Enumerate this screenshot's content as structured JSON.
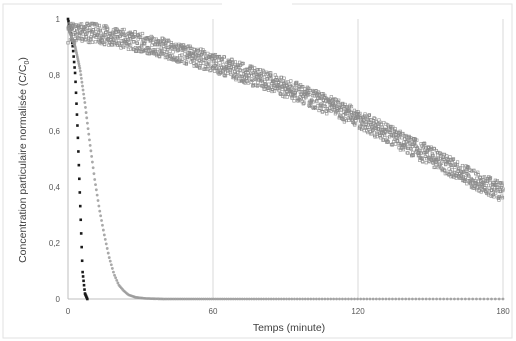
{
  "chart_data": {
    "type": "scatter",
    "title": "",
    "xlabel": "Temps (minute)",
    "ylabel": "Concentration particulaire normalisée (C/C",
    "ylabel_sub": "0",
    "ylabel_close": ")",
    "xlim": [
      0,
      180
    ],
    "ylim": [
      0,
      1
    ],
    "x_ticks": [
      0,
      60,
      120,
      180
    ],
    "x_tick_labels": [
      "0",
      "60",
      "120",
      "180"
    ],
    "y_ticks": [
      0,
      0.2,
      0.4,
      0.6,
      0.8,
      1
    ],
    "y_tick_labels": [
      "0",
      "0,2",
      "0,4",
      "0,6",
      "0,8",
      "1"
    ],
    "grid": "vertical",
    "legend": "none",
    "series": [
      {
        "marker": "square-black",
        "color": "#1a1a1a",
        "x": [
          0,
          1,
          2,
          3,
          4,
          5,
          6,
          7,
          8
        ],
        "y": [
          1.0,
          0.96,
          0.9,
          0.8,
          0.6,
          0.35,
          0.1,
          0.02,
          0.0
        ]
      },
      {
        "marker": "circle-gray",
        "color": "#9a9a9a",
        "x": [
          0,
          3,
          5,
          7,
          9,
          11,
          13,
          15,
          17,
          19,
          21,
          23,
          25,
          28,
          32,
          40,
          60,
          100,
          180
        ],
        "y": [
          0.97,
          0.9,
          0.82,
          0.7,
          0.56,
          0.43,
          0.32,
          0.23,
          0.15,
          0.09,
          0.05,
          0.03,
          0.015,
          0.006,
          0.002,
          0.0,
          0.0,
          0.0,
          0.0
        ]
      },
      {
        "marker": "square-open",
        "color": "#8c8c8c",
        "x": [
          0,
          10,
          20,
          30,
          40,
          50,
          60,
          70,
          80,
          90,
          100,
          110,
          120,
          130,
          140,
          150,
          160,
          170,
          180
        ],
        "y": [
          0.95,
          0.95,
          0.935,
          0.915,
          0.895,
          0.87,
          0.845,
          0.815,
          0.785,
          0.755,
          0.72,
          0.685,
          0.645,
          0.6,
          0.555,
          0.51,
          0.465,
          0.42,
          0.38
        ]
      }
    ]
  }
}
